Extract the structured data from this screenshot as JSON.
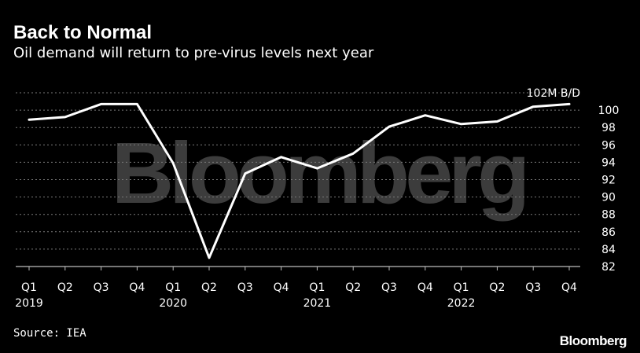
{
  "header": {
    "title": "Back to Normal",
    "subtitle": "Oil demand will return to pre-virus levels next year"
  },
  "footer": {
    "source": "Source: IEA",
    "brand": "Bloomberg"
  },
  "watermark": "Bloomberg",
  "colors": {
    "background": "#000000",
    "line": "#ffffff",
    "grid": "#7a7a7a",
    "watermark": "#3c3c3c"
  },
  "chart_data": {
    "type": "line",
    "title": "Back to Normal",
    "subtitle": "Oil demand will return to pre-virus levels next year",
    "unit_label": "102M B/D",
    "categories": [
      "Q1",
      "Q2",
      "Q3",
      "Q4",
      "Q1",
      "Q2",
      "Q3",
      "Q4",
      "Q1",
      "Q2",
      "Q3",
      "Q4",
      "Q1",
      "Q2",
      "Q3",
      "Q4"
    ],
    "year_labels": [
      {
        "index": 0,
        "label": "2019"
      },
      {
        "index": 4,
        "label": "2020"
      },
      {
        "index": 8,
        "label": "2021"
      },
      {
        "index": 12,
        "label": "2022"
      }
    ],
    "series": [
      {
        "values": [
          98.9,
          99.2,
          100.7,
          100.7,
          93.9,
          83.0,
          92.7,
          94.6,
          93.3,
          95.0,
          98.1,
          99.4,
          98.4,
          98.7,
          100.4,
          100.7
        ]
      }
    ],
    "ylim": [
      82,
      102
    ],
    "yticks": [
      82,
      84,
      86,
      88,
      90,
      92,
      94,
      96,
      98,
      100
    ],
    "y_axis_side": "right",
    "grid": true,
    "grid_style": "dotted",
    "legend": "none"
  }
}
